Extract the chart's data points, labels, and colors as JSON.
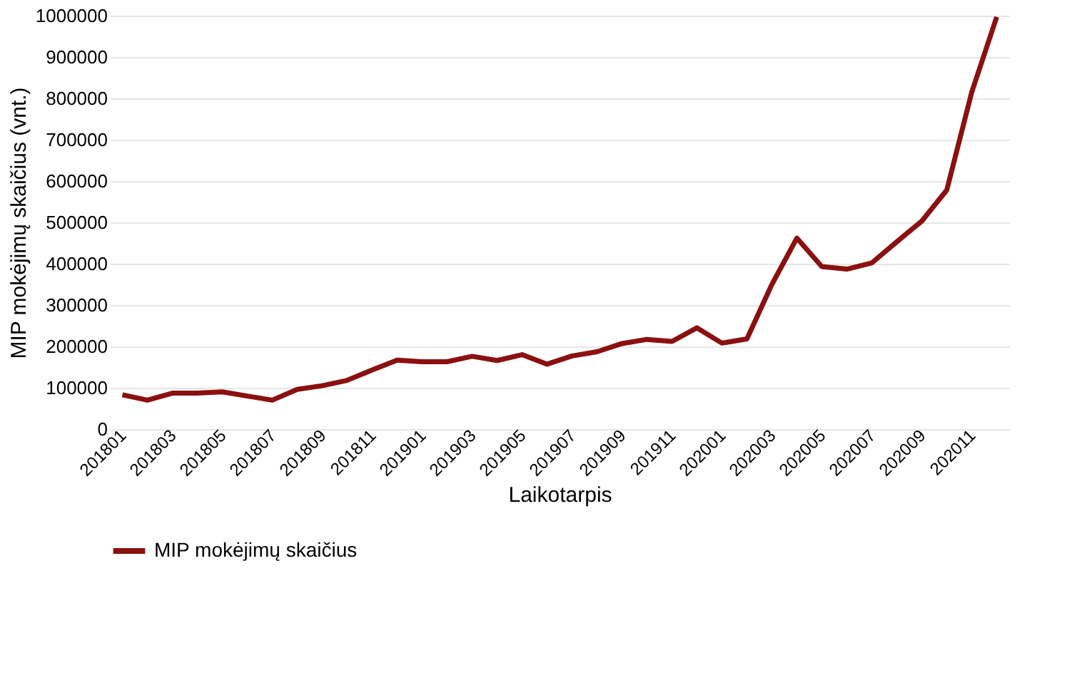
{
  "chart_data": {
    "type": "line",
    "xlabel": "Laikotarpis",
    "ylabel": "MIP mokėjimų skaičius (vnt.)",
    "categories": [
      "201801",
      null,
      "201803",
      null,
      "201805",
      null,
      "201807",
      null,
      "201809",
      null,
      "201811",
      null,
      "201901",
      null,
      "201903",
      null,
      "201905",
      null,
      "201907",
      null,
      "201909",
      null,
      "201911",
      null,
      "202001",
      null,
      "202003",
      null,
      "202005",
      null,
      "202007",
      null,
      "202009",
      null,
      "202011",
      null
    ],
    "series": [
      {
        "name": "MIP mokėjimų skaičius",
        "color": "#8b1010",
        "values": [
          83000,
          70000,
          87000,
          87000,
          90000,
          80000,
          70000,
          96000,
          105000,
          118000,
          143000,
          167000,
          163000,
          163000,
          176000,
          166000,
          180000,
          157000,
          177000,
          187000,
          207000,
          217000,
          212000,
          245000,
          208000,
          218000,
          350000,
          462000,
          393000,
          387000,
          402000,
          453000,
          503000,
          578000,
          815000,
          997000
        ]
      }
    ],
    "ylim": [
      0,
      1000000
    ],
    "yticks": [
      0,
      100000,
      200000,
      300000,
      400000,
      500000,
      600000,
      700000,
      800000,
      900000,
      1000000
    ],
    "grid": "y",
    "legend": "bottom",
    "marker": "none",
    "line_style": "solid"
  }
}
